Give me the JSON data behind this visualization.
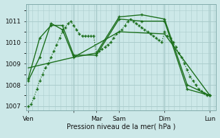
{
  "background_color": "#cce8e8",
  "grid_color": "#aacccc",
  "line_color": "#1a6e1a",
  "xlabel": "Pression niveau de la mer( hPa )",
  "ylim": [
    1006.8,
    1011.8
  ],
  "yticks": [
    1007,
    1008,
    1009,
    1010,
    1011
  ],
  "xlim": [
    0,
    200
  ],
  "x_day_positions": [
    2,
    50,
    74,
    98,
    146,
    194
  ],
  "x_day_labels": [
    "Ven",
    "",
    "Mar",
    "Sam",
    "Dim",
    "Lun"
  ],
  "series": [
    {
      "x": [
        2,
        5,
        8,
        11,
        14,
        17,
        20,
        23,
        26,
        29,
        32,
        35,
        38,
        41,
        44,
        47,
        50,
        53,
        56,
        59,
        62,
        65,
        68,
        71,
        74,
        77,
        80,
        83,
        86,
        89,
        92,
        95,
        98,
        101,
        104,
        107,
        110,
        113,
        116,
        119,
        122,
        125,
        128,
        131,
        134,
        137,
        140,
        143,
        146,
        149,
        152,
        155,
        158,
        161,
        164,
        167,
        170,
        173,
        176,
        179,
        182,
        185,
        188,
        191,
        194
      ],
      "y": [
        1007.0,
        1007.1,
        1007.4,
        1007.8,
        1008.2,
        1008.5,
        1008.8,
        1009.0,
        1009.3,
        1009.6,
        1009.9,
        1010.2,
        1010.5,
        1010.7,
        1010.9,
        1011.0,
        1010.8,
        1010.6,
        1010.4,
        1010.3,
        1010.3,
        1010.3,
        1010.3,
        1010.3,
        1009.5,
        1009.6,
        1009.7,
        1009.8,
        1009.9,
        1010.0,
        1010.2,
        1010.4,
        1010.5,
        1010.6,
        1010.8,
        1011.0,
        1011.1,
        1011.0,
        1010.9,
        1010.8,
        1010.7,
        1010.6,
        1010.5,
        1010.4,
        1010.3,
        1010.2,
        1010.1,
        1010.0,
        1010.5,
        1010.3,
        1010.2,
        1010.0,
        1009.8,
        1009.5,
        1009.3,
        1009.0,
        1008.7,
        1008.4,
        1008.2,
        1008.0,
        1007.8,
        1007.7,
        1007.6,
        1007.5,
        1007.5
      ],
      "style": "dotted",
      "marker": "+"
    },
    {
      "x": [
        2,
        14,
        26,
        38,
        50,
        74,
        98,
        122,
        146,
        170,
        194
      ],
      "y": [
        1008.3,
        1010.2,
        1010.8,
        1010.8,
        1009.4,
        1009.4,
        1011.1,
        1011.0,
        1011.0,
        1007.8,
        1007.5
      ],
      "style": "solid",
      "marker": "+"
    },
    {
      "x": [
        2,
        14,
        26,
        38,
        50,
        74,
        98,
        122,
        146,
        170,
        194
      ],
      "y": [
        1008.2,
        1009.3,
        1010.9,
        1010.6,
        1009.3,
        1009.5,
        1011.2,
        1011.3,
        1011.1,
        1008.0,
        1007.5
      ],
      "style": "solid",
      "marker": "+"
    },
    {
      "x": [
        2,
        50,
        98,
        146,
        194
      ],
      "y": [
        1008.8,
        1009.3,
        1010.5,
        1010.4,
        1007.5
      ],
      "style": "solid",
      "marker": null
    }
  ]
}
